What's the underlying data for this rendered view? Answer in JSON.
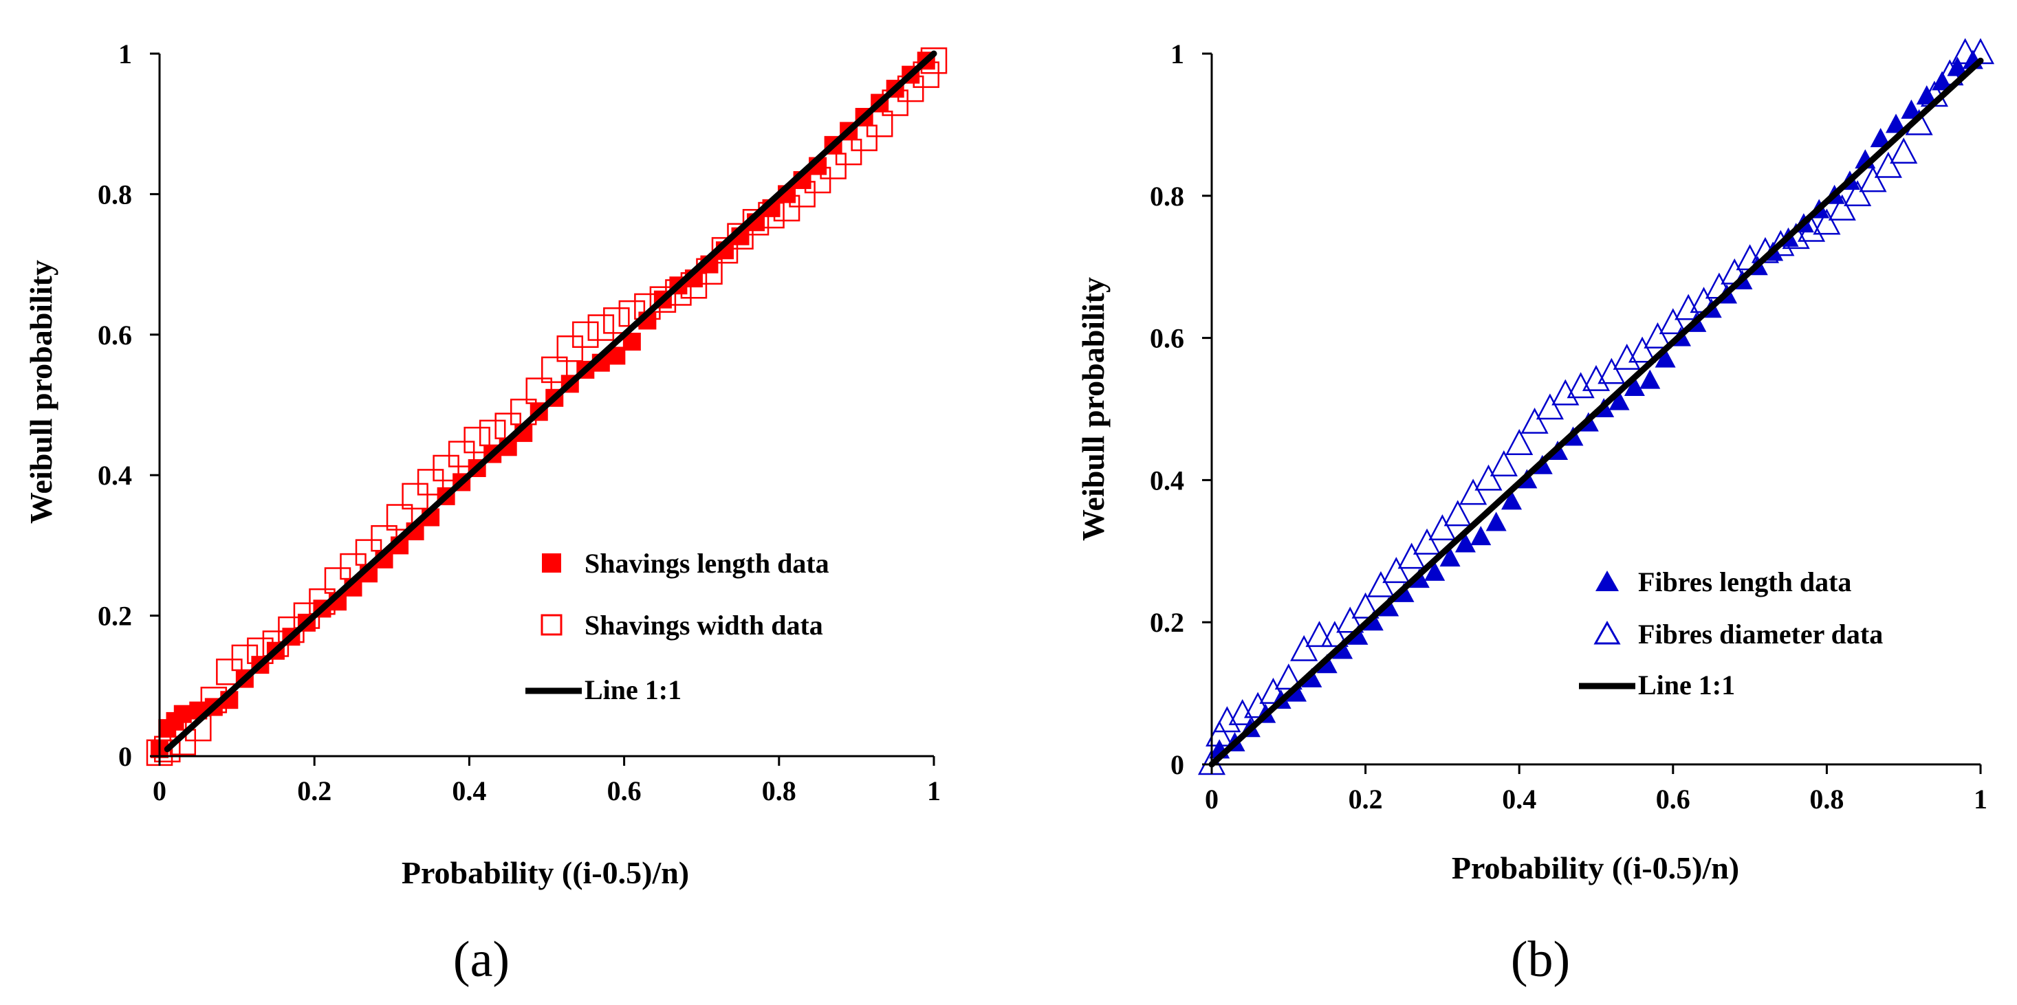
{
  "chart_data": [
    {
      "type": "scatter",
      "caption": "(a)",
      "xlabel": "Probability ((i-0.5)/n)",
      "ylabel": "Weibull probability",
      "xlim": [
        0,
        1
      ],
      "ylim": [
        0,
        1
      ],
      "xticks": [
        "0",
        "0.2",
        "0.4",
        "0.6",
        "0.8",
        "1"
      ],
      "yticks": [
        "0",
        "0.2",
        "0.4",
        "0.6",
        "0.8",
        "1"
      ],
      "legend_position": "lower-right",
      "colors": {
        "series": "#ff0000",
        "line": "#000000"
      },
      "series": [
        {
          "name": "Shavings length data",
          "marker": "filled-square",
          "x": [
            0.0,
            0.01,
            0.02,
            0.03,
            0.05,
            0.07,
            0.09,
            0.11,
            0.13,
            0.15,
            0.17,
            0.19,
            0.21,
            0.23,
            0.25,
            0.27,
            0.29,
            0.31,
            0.33,
            0.35,
            0.37,
            0.39,
            0.41,
            0.43,
            0.45,
            0.47,
            0.49,
            0.51,
            0.53,
            0.55,
            0.57,
            0.59,
            0.61,
            0.63,
            0.65,
            0.67,
            0.69,
            0.71,
            0.73,
            0.75,
            0.77,
            0.79,
            0.81,
            0.83,
            0.85,
            0.87,
            0.89,
            0.91,
            0.93,
            0.95,
            0.97,
            0.99
          ],
          "y": [
            0.01,
            0.04,
            0.05,
            0.06,
            0.065,
            0.07,
            0.08,
            0.11,
            0.13,
            0.15,
            0.17,
            0.19,
            0.21,
            0.22,
            0.24,
            0.26,
            0.28,
            0.3,
            0.32,
            0.34,
            0.37,
            0.39,
            0.41,
            0.43,
            0.44,
            0.46,
            0.49,
            0.51,
            0.53,
            0.55,
            0.56,
            0.57,
            0.59,
            0.62,
            0.65,
            0.67,
            0.68,
            0.7,
            0.72,
            0.74,
            0.76,
            0.78,
            0.8,
            0.82,
            0.84,
            0.87,
            0.89,
            0.91,
            0.93,
            0.95,
            0.97,
            0.99
          ]
        },
        {
          "name": "Shavings width data",
          "marker": "open-square",
          "x": [
            0.0,
            0.01,
            0.03,
            0.05,
            0.07,
            0.09,
            0.11,
            0.13,
            0.15,
            0.17,
            0.19,
            0.21,
            0.23,
            0.25,
            0.27,
            0.29,
            0.31,
            0.33,
            0.35,
            0.37,
            0.39,
            0.41,
            0.43,
            0.45,
            0.47,
            0.49,
            0.51,
            0.53,
            0.55,
            0.57,
            0.59,
            0.61,
            0.63,
            0.65,
            0.67,
            0.69,
            0.71,
            0.73,
            0.75,
            0.77,
            0.79,
            0.81,
            0.83,
            0.85,
            0.87,
            0.89,
            0.91,
            0.93,
            0.95,
            0.97,
            0.99,
            1.0
          ],
          "y": [
            0.005,
            0.01,
            0.02,
            0.04,
            0.08,
            0.12,
            0.14,
            0.15,
            0.16,
            0.18,
            0.2,
            0.22,
            0.25,
            0.27,
            0.29,
            0.31,
            0.34,
            0.37,
            0.39,
            0.41,
            0.43,
            0.45,
            0.46,
            0.47,
            0.49,
            0.52,
            0.55,
            0.58,
            0.6,
            0.61,
            0.62,
            0.63,
            0.64,
            0.65,
            0.66,
            0.67,
            0.69,
            0.72,
            0.74,
            0.76,
            0.77,
            0.78,
            0.8,
            0.82,
            0.84,
            0.86,
            0.88,
            0.9,
            0.93,
            0.95,
            0.97,
            0.99
          ]
        }
      ],
      "reference_line": {
        "name": "Line 1:1",
        "x": [
          0.01,
          1.0
        ],
        "y": [
          0.01,
          1.0
        ]
      }
    },
    {
      "type": "scatter",
      "caption": "(b)",
      "xlabel": "Probability ((i-0.5)/n)",
      "ylabel": "Weibull probability",
      "xlim": [
        0,
        1
      ],
      "ylim": [
        0,
        1
      ],
      "xticks": [
        "0",
        "0.2",
        "0.4",
        "0.6",
        "0.8",
        "1"
      ],
      "yticks": [
        "0",
        "0.2",
        "0.4",
        "0.6",
        "0.8",
        "1"
      ],
      "legend_position": "lower-right",
      "colors": {
        "series": "#0000cc",
        "line": "#000000"
      },
      "series": [
        {
          "name": "Fibres length data",
          "marker": "filled-triangle",
          "x": [
            0.01,
            0.03,
            0.05,
            0.07,
            0.09,
            0.11,
            0.13,
            0.15,
            0.17,
            0.19,
            0.21,
            0.23,
            0.25,
            0.27,
            0.29,
            0.31,
            0.33,
            0.35,
            0.37,
            0.39,
            0.41,
            0.43,
            0.45,
            0.47,
            0.49,
            0.51,
            0.53,
            0.55,
            0.57,
            0.59,
            0.61,
            0.63,
            0.65,
            0.67,
            0.69,
            0.71,
            0.73,
            0.75,
            0.77,
            0.79,
            0.81,
            0.83,
            0.85,
            0.87,
            0.89,
            0.91,
            0.93,
            0.95,
            0.97,
            0.99
          ],
          "y": [
            0.02,
            0.03,
            0.05,
            0.07,
            0.09,
            0.1,
            0.12,
            0.14,
            0.16,
            0.18,
            0.2,
            0.22,
            0.24,
            0.26,
            0.27,
            0.29,
            0.31,
            0.32,
            0.34,
            0.37,
            0.4,
            0.42,
            0.44,
            0.46,
            0.48,
            0.5,
            0.51,
            0.53,
            0.54,
            0.57,
            0.6,
            0.62,
            0.64,
            0.66,
            0.68,
            0.7,
            0.72,
            0.74,
            0.76,
            0.78,
            0.8,
            0.82,
            0.85,
            0.88,
            0.9,
            0.92,
            0.94,
            0.96,
            0.98,
            0.99
          ]
        },
        {
          "name": "Fibres diameter data",
          "marker": "open-triangle",
          "x": [
            0.0,
            0.01,
            0.02,
            0.04,
            0.06,
            0.08,
            0.1,
            0.12,
            0.14,
            0.16,
            0.18,
            0.2,
            0.22,
            0.24,
            0.26,
            0.28,
            0.3,
            0.32,
            0.34,
            0.36,
            0.38,
            0.4,
            0.42,
            0.44,
            0.46,
            0.48,
            0.5,
            0.52,
            0.54,
            0.56,
            0.58,
            0.6,
            0.62,
            0.64,
            0.66,
            0.68,
            0.7,
            0.72,
            0.74,
            0.76,
            0.78,
            0.8,
            0.82,
            0.84,
            0.86,
            0.88,
            0.9,
            0.92,
            0.94,
            0.96,
            0.98,
            1.0
          ],
          "y": [
            0.0,
            0.04,
            0.06,
            0.07,
            0.08,
            0.1,
            0.12,
            0.16,
            0.18,
            0.18,
            0.2,
            0.22,
            0.25,
            0.27,
            0.29,
            0.31,
            0.33,
            0.35,
            0.38,
            0.4,
            0.42,
            0.45,
            0.48,
            0.5,
            0.52,
            0.53,
            0.54,
            0.55,
            0.57,
            0.58,
            0.6,
            0.62,
            0.64,
            0.65,
            0.67,
            0.69,
            0.71,
            0.72,
            0.73,
            0.74,
            0.75,
            0.76,
            0.78,
            0.8,
            0.82,
            0.84,
            0.86,
            0.9,
            0.94,
            0.97,
            1.0,
            1.0
          ]
        }
      ],
      "reference_line": {
        "name": "Line 1:1",
        "x": [
          0.0,
          1.0
        ],
        "y": [
          0.0,
          0.99
        ]
      }
    }
  ]
}
